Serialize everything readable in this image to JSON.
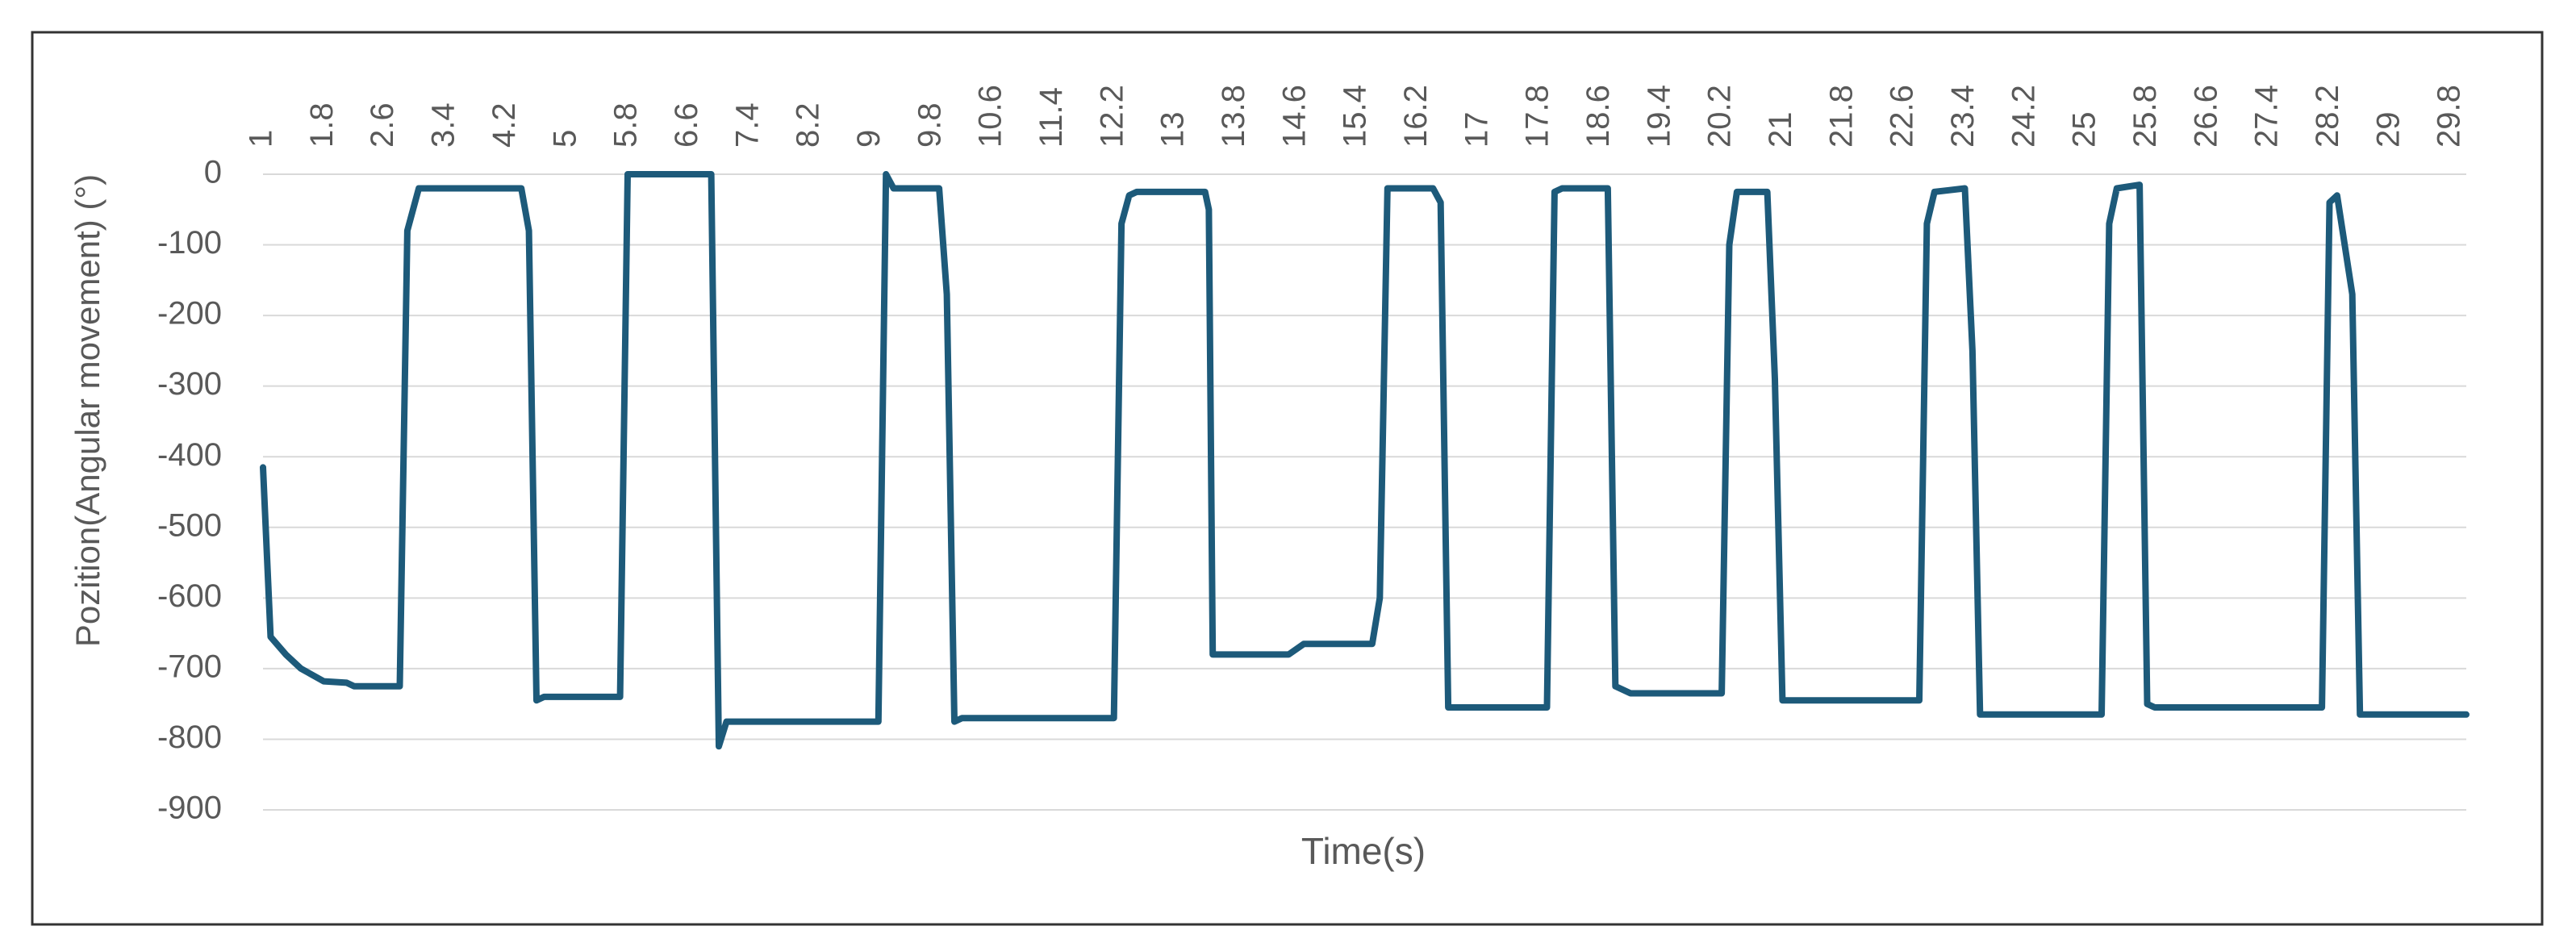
{
  "chart_data": {
    "type": "line",
    "x_label": "Time(s)",
    "y_label": "Pozition(Angular movement) (°)",
    "x": [
      1.0,
      1.1,
      1.3,
      1.5,
      1.8,
      2.1,
      2.2,
      2.8,
      2.9,
      3.05,
      4.4,
      4.5,
      4.6,
      4.7,
      5.7,
      5.8,
      6.9,
      7.0,
      7.1,
      9.1,
      9.2,
      9.3,
      9.9,
      10.0,
      10.1,
      10.2,
      12.2,
      12.3,
      12.4,
      12.5,
      13.4,
      13.45,
      13.5,
      14.5,
      14.7,
      15.6,
      15.7,
      15.8,
      16.4,
      16.5,
      16.6,
      17.9,
      18.0,
      18.1,
      18.7,
      18.8,
      19.0,
      20.2,
      20.3,
      20.4,
      20.8,
      20.9,
      21.0,
      22.8,
      22.9,
      23.0,
      23.4,
      23.5,
      23.6,
      25.2,
      25.3,
      25.4,
      25.7,
      25.8,
      25.9,
      28.1,
      28.2,
      28.3,
      28.5,
      28.6,
      30.0
    ],
    "series": [
      {
        "name": "Pozition",
        "color": "#1d5a7a",
        "values": [
          -415,
          -655,
          -680,
          -700,
          -718,
          -720,
          -725,
          -725,
          -80,
          -20,
          -20,
          -80,
          -745,
          -740,
          -740,
          0,
          0,
          -810,
          -775,
          -775,
          0,
          -20,
          -20,
          -170,
          -775,
          -770,
          -770,
          -70,
          -30,
          -25,
          -25,
          -50,
          -680,
          -680,
          -665,
          -665,
          -600,
          -20,
          -20,
          -40,
          -755,
          -755,
          -25,
          -20,
          -20,
          -725,
          -735,
          -735,
          -100,
          -25,
          -25,
          -290,
          -745,
          -745,
          -70,
          -25,
          -20,
          -250,
          -765,
          -765,
          -70,
          -20,
          -15,
          -750,
          -755,
          -755,
          -40,
          -30,
          -170,
          -765,
          -765
        ]
      }
    ],
    "xlim": [
      1,
      30
    ],
    "xticks": [
      1,
      1.8,
      2.6,
      3.4,
      4.2,
      5,
      5.8,
      6.6,
      7.4,
      8.2,
      9,
      9.8,
      10.6,
      11.4,
      12.2,
      13,
      13.8,
      14.6,
      15.4,
      16.2,
      17,
      17.8,
      18.6,
      19.4,
      20.2,
      21,
      21.8,
      22.6,
      23.4,
      24.2,
      25,
      25.8,
      26.6,
      27.4,
      28.2,
      29,
      29.8
    ],
    "ylim": [
      -900,
      0
    ],
    "yticks": [
      0,
      -100,
      -200,
      -300,
      -400,
      -500,
      -600,
      -700,
      -800,
      -900
    ],
    "grid": true
  }
}
